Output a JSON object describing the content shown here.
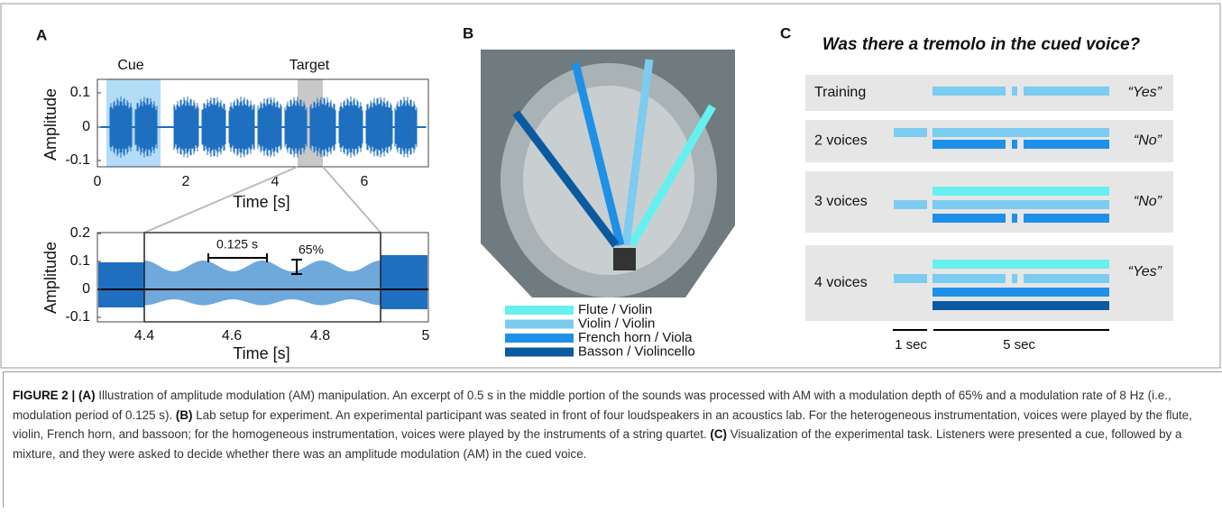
{
  "panel_a": {
    "label": "A",
    "top_plot": {
      "annotations": [
        "Cue",
        "Target"
      ],
      "ylabel": "Amplitude",
      "xlabel": "Time [s]",
      "yticks": [
        0.1,
        0,
        -0.1
      ],
      "xticks": [
        0,
        2,
        4,
        6
      ]
    },
    "bottom_plot": {
      "ylabel": "Amplitude",
      "xlabel": "Time [s]",
      "yticks": [
        0.2,
        0.1,
        0,
        -0.1
      ],
      "xticks": [
        4.4,
        4.6,
        4.8,
        5
      ],
      "period_label": "0.125 s",
      "depth_label": "65%"
    }
  },
  "panel_b": {
    "label": "B",
    "legend": [
      {
        "name": "Flute / Violin",
        "color": "#66f0f0"
      },
      {
        "name": "Violin / Violin",
        "color": "#7ccbf0"
      },
      {
        "name": "French horn / Viola",
        "color": "#1e90e8"
      },
      {
        "name": "Basson / Violincello",
        "color": "#0a5aa0"
      }
    ]
  },
  "panel_c": {
    "label": "C",
    "title": "Was there a tremolo in the cued voice?",
    "rows": [
      {
        "condition": "Training",
        "answer": "“Yes”"
      },
      {
        "condition": "2 voices",
        "answer": "“No”"
      },
      {
        "condition": "3 voices",
        "answer": "“No”"
      },
      {
        "condition": "4 voices",
        "answer": "“Yes”"
      }
    ],
    "scale": [
      "1 sec",
      "5 sec"
    ]
  },
  "caption": {
    "segments": [
      {
        "text": "FIGURE 2 | (A)",
        "bold": true
      },
      {
        "text": " Illustration of amplitude modulation (AM) manipulation. An excerpt of 0.5 s in the middle portion of the sounds was processed with AM with a modulation depth of 65% and a modulation rate of 8 Hz (i.e., modulation period of 0.125 s). ",
        "bold": false
      },
      {
        "text": "(B)",
        "bold": true
      },
      {
        "text": " Lab setup for experiment. An experimental participant was seated in front of four loudspeakers in an acoustics lab. For the heterogeneous instrumentation, voices were played by the flute, violin, French horn, and bassoon; for the homogeneous instrumentation, voices were played by the instruments of a string quartet. ",
        "bold": false
      },
      {
        "text": "(C)",
        "bold": true
      },
      {
        "text": " Visualization of the experimental task. Listeners were presented a cue, followed by a mixture, and they were asked to decide whether there was an amplitude modulation (AM) in the cued voice.",
        "bold": false
      }
    ]
  }
}
